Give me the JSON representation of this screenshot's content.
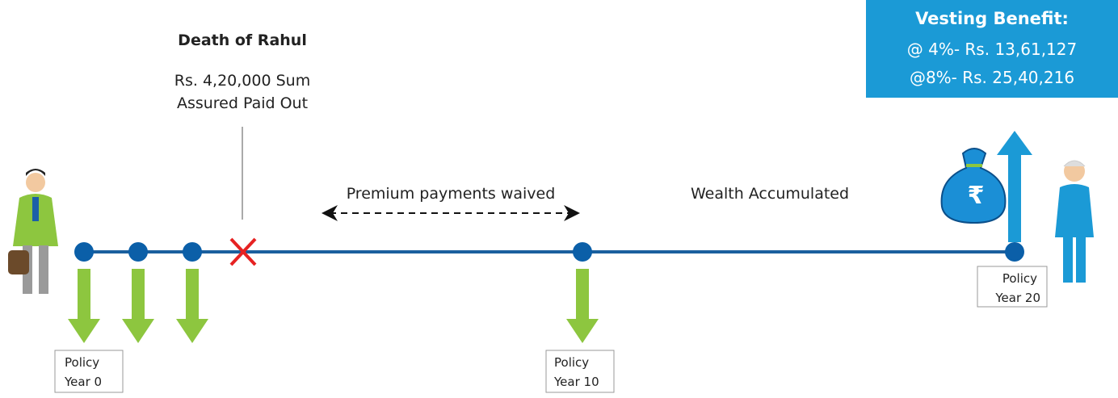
{
  "death": {
    "title": "Death of Rahul",
    "lines": [
      "Rs. 4,20,000 Sum",
      "Assured Paid Out"
    ]
  },
  "waiver": "Premium payments waived",
  "accumulation": "Wealth Accumulated",
  "vesting": {
    "title": "Vesting Benefit:",
    "lines": [
      "@ 4%- Rs. 13,61,127",
      "@8%- Rs. 25,40,216"
    ]
  },
  "milestones": [
    {
      "lines": [
        "Policy",
        "Year 0"
      ]
    },
    {
      "lines": [
        "Policy",
        "Year 10"
      ]
    },
    {
      "lines": [
        "Policy",
        "Year 20"
      ]
    }
  ]
}
